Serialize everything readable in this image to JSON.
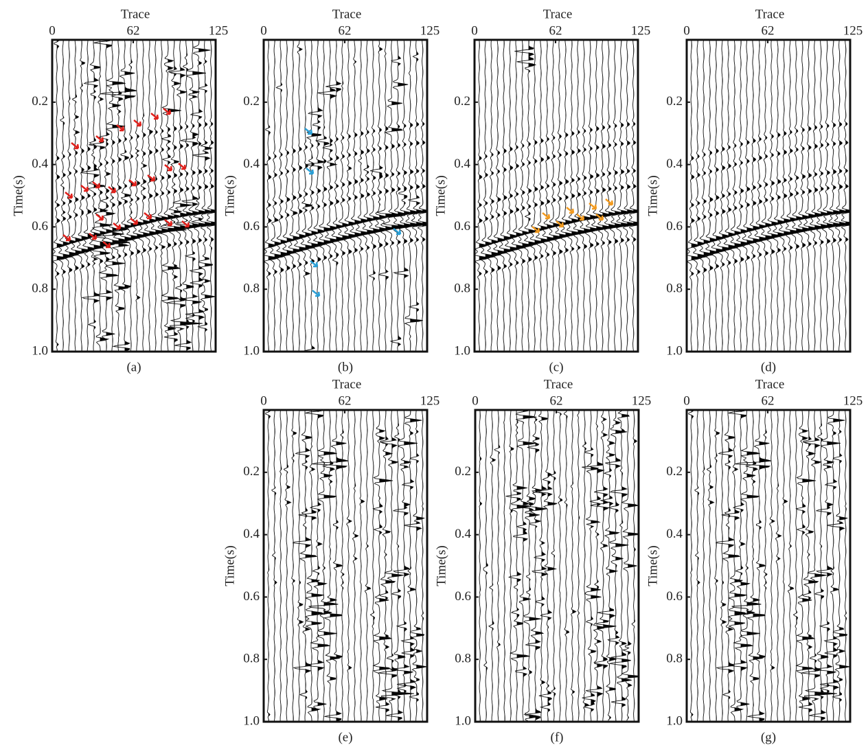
{
  "chart_data": [
    {
      "type": "seismic",
      "xlabel": "Trace",
      "ylabel": "Time(s)",
      "caption": "(a)",
      "xlim": [
        0,
        125
      ],
      "xticks": [
        0,
        62,
        125
      ],
      "ylim": [
        0,
        1
      ],
      "yticks": [
        0.2,
        0.4,
        0.6,
        0.8,
        {
          "value": 1,
          "label": "1.0"
        }
      ]
    },
    {
      "type": "seismic",
      "xlabel": "Trace",
      "ylabel": "Time(s)",
      "caption": "(b)",
      "xlim": [
        0,
        125
      ],
      "xticks": [
        0,
        62,
        125
      ],
      "ylim": [
        0,
        1
      ],
      "yticks": [
        0.2,
        0.4,
        0.6,
        0.8,
        {
          "value": 1,
          "label": "1.0"
        }
      ]
    },
    {
      "type": "seismic",
      "xlabel": "Trace",
      "ylabel": "Time(s)",
      "caption": "(c)",
      "xlim": [
        0,
        125
      ],
      "xticks": [
        0,
        62,
        125
      ],
      "ylim": [
        0,
        1
      ],
      "yticks": [
        0.2,
        0.4,
        0.6,
        0.8,
        {
          "value": 1,
          "label": "1.0"
        }
      ]
    },
    {
      "type": "seismic",
      "xlabel": "Trace",
      "ylabel": "Time(s)",
      "caption": "(d)",
      "xlim": [
        0,
        125
      ],
      "xticks": [
        0,
        62,
        125
      ],
      "ylim": [
        0,
        1
      ],
      "yticks": [
        0.2,
        0.4,
        0.6,
        0.8,
        {
          "value": 1,
          "label": "1.0"
        }
      ]
    },
    {
      "type": "seismic",
      "xlabel": "Trace",
      "ylabel": "Time(s)",
      "caption": "(e)",
      "xlim": [
        0,
        125
      ],
      "xticks": [
        0,
        62,
        125
      ],
      "ylim": [
        0,
        1
      ],
      "yticks": [
        0.2,
        0.4,
        0.6,
        0.8,
        {
          "value": 1,
          "label": "1.0"
        }
      ]
    },
    {
      "type": "seismic",
      "xlabel": "Trace",
      "ylabel": "Time(s)",
      "caption": "(f)",
      "xlim": [
        0,
        125
      ],
      "xticks": [
        0,
        62,
        125
      ],
      "ylim": [
        0,
        1
      ],
      "yticks": [
        0.2,
        0.4,
        0.6,
        0.8,
        {
          "value": 1,
          "label": "1.0"
        }
      ]
    },
    {
      "type": "seismic",
      "xlabel": "Trace",
      "ylabel": "Time(s)",
      "caption": "(g)",
      "xlim": [
        0,
        125
      ],
      "xticks": [
        0,
        62,
        125
      ],
      "ylim": [
        0,
        1
      ],
      "yticks": [
        0.2,
        0.4,
        0.6,
        0.8,
        {
          "value": 1,
          "label": "1.0"
        }
      ]
    }
  ]
}
